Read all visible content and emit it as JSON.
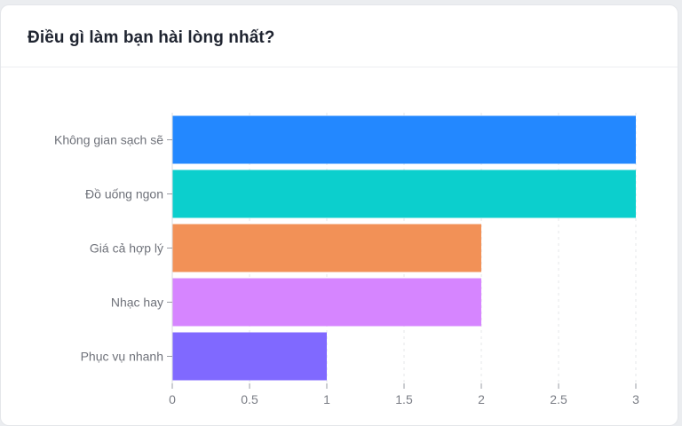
{
  "card": {
    "title": "Điều gì làm bạn hài lòng nhất?"
  },
  "chart_data": {
    "type": "bar",
    "orientation": "horizontal",
    "categories": [
      "Không gian sạch sẽ",
      "Đồ uống ngon",
      "Giá cả hợp lý",
      "Nhạc hay",
      "Phục vụ nhanh"
    ],
    "values": [
      3,
      3,
      2,
      2,
      1
    ],
    "colors": [
      "#2388ff",
      "#0ccfcd",
      "#f29157",
      "#d685ff",
      "#8069ff"
    ],
    "xlim": [
      0,
      3
    ],
    "xticks": [
      0,
      0.5,
      1,
      1.5,
      2,
      2.5,
      3
    ],
    "xtick_labels": [
      "0",
      "0.5",
      "1",
      "1.5",
      "2",
      "2.5",
      "3"
    ],
    "grid": true,
    "legend": "none",
    "title": "",
    "xlabel": "",
    "ylabel": ""
  }
}
